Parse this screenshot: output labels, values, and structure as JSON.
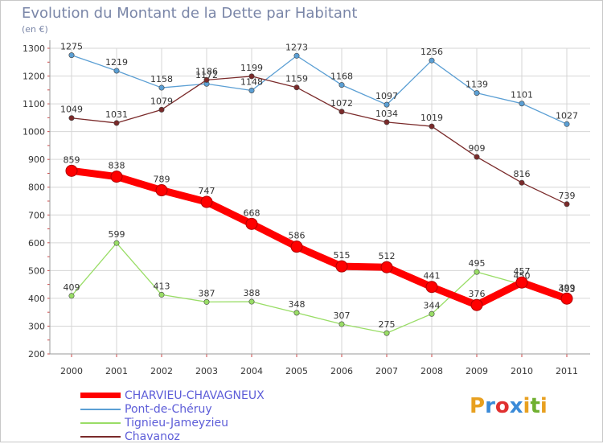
{
  "title": "Evolution du Montant de la Dette par Habitant",
  "unit": "(en €)",
  "logo": "Proxiti",
  "chart_data": {
    "type": "line",
    "title": "Evolution du Montant de la Dette par Habitant",
    "ylabel": "(en €)",
    "x": [
      "2000",
      "2001",
      "2002",
      "2003",
      "2004",
      "2005",
      "2006",
      "2007",
      "2008",
      "2009",
      "2010",
      "2011"
    ],
    "yticks": [
      200,
      300,
      400,
      500,
      600,
      700,
      800,
      900,
      1000,
      1100,
      1200,
      1300
    ],
    "ylim": [
      200,
      1300
    ],
    "grid": true,
    "legend": "bottom",
    "series": [
      {
        "name": "CHARVIEU-CHAVAGNEUX",
        "color": "#ff0000",
        "values": [
          859,
          838,
          789,
          747,
          668,
          586,
          515,
          512,
          441,
          376,
          457,
          399
        ],
        "labels": [
          "859",
          "838",
          "789",
          "747",
          "668",
          "586",
          "515",
          "512",
          "441",
          "376",
          "457",
          "399"
        ]
      },
      {
        "name": "Pont-de-Chéruy",
        "color": "#5b9fd4",
        "values": [
          1275,
          1219,
          1158,
          1172,
          1148,
          1273,
          1168,
          1097,
          1256,
          1139,
          1101,
          1027
        ],
        "labels": [
          "1275",
          "1219",
          "1158",
          "1172",
          "1148",
          "1273",
          "1168",
          "1097",
          "1256",
          "1139",
          "1101",
          "1027"
        ]
      },
      {
        "name": "Tignieu-Jameyzieu",
        "color": "#99dd66",
        "values": [
          409,
          599,
          413,
          387,
          388,
          348,
          307,
          275,
          344,
          495,
          450,
          403
        ],
        "labels": [
          "409",
          "599",
          "413",
          "387",
          "388",
          "348",
          "307",
          "275",
          "344",
          "495",
          "450",
          "403"
        ]
      },
      {
        "name": "Chavanoz",
        "color": "#7a2a2a",
        "values": [
          1049,
          1031,
          1079,
          1186,
          1199,
          1159,
          1072,
          1034,
          1019,
          909,
          816,
          739
        ],
        "labels": [
          "1049",
          "1031",
          "1079",
          "1186",
          "1199",
          "1159",
          "1072",
          "1034",
          "1019",
          "909",
          "816",
          "739"
        ]
      }
    ]
  }
}
